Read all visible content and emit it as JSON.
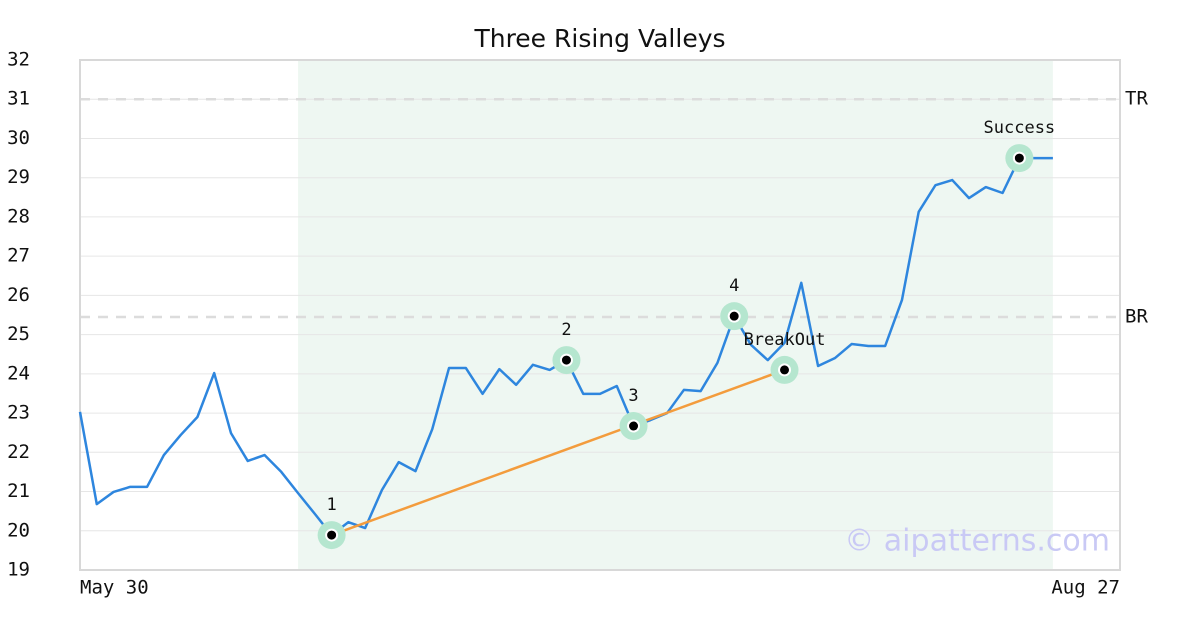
{
  "chart_data": {
    "type": "line",
    "title": "Three Rising Valleys",
    "x": [
      0,
      1,
      2,
      3,
      4,
      5,
      6,
      7,
      8,
      9,
      10,
      11,
      12,
      13,
      14,
      15,
      16,
      17,
      18,
      19,
      20,
      21,
      22,
      23,
      24,
      25,
      26,
      27,
      28,
      29,
      30,
      31,
      32,
      33,
      34,
      35,
      36,
      37,
      38,
      39,
      40,
      41,
      42,
      43,
      44,
      45,
      46,
      47,
      48,
      49,
      50,
      51,
      52,
      53,
      54,
      55,
      56,
      57,
      58
    ],
    "series": [
      {
        "color": "#2e86de",
        "values": [
          23.03,
          20.68,
          20.99,
          21.12,
          21.12,
          21.93,
          22.44,
          22.9,
          24.02,
          22.49,
          21.78,
          21.93,
          21.5,
          20.96,
          20.43,
          19.89,
          20.22,
          20.07,
          21.04,
          21.75,
          21.52,
          22.59,
          24.15,
          24.15,
          23.49,
          24.12,
          23.72,
          24.23,
          24.1,
          24.35,
          23.49,
          23.49,
          23.69,
          22.67,
          22.82,
          23.0,
          23.59,
          23.56,
          24.28,
          25.47,
          24.74,
          24.35,
          24.79,
          26.32,
          24.2,
          24.4,
          24.76,
          24.71,
          24.71,
          25.88,
          28.13,
          28.81,
          28.94,
          28.48,
          28.76,
          28.61,
          29.5,
          29.5,
          29.5
        ]
      }
    ],
    "xlim": [
      0,
      62
    ],
    "xticks": [
      {
        "value": 0,
        "label": "May 30"
      },
      {
        "value": 62,
        "label": "Aug 27"
      }
    ],
    "ylim": [
      19,
      32
    ],
    "yticks": [
      19,
      20,
      21,
      22,
      23,
      24,
      25,
      26,
      27,
      28,
      29,
      30,
      31,
      32
    ],
    "grid": true,
    "shaded_region": [
      13,
      58
    ],
    "levels": [
      {
        "label": "TR",
        "value": 31
      },
      {
        "label": "BR",
        "value": 25.45
      }
    ],
    "trendline": {
      "color": "#f39c3d",
      "x": [
        15,
        42
      ],
      "y": [
        19.89,
        24.1
      ]
    },
    "annotations": [
      {
        "label": "1",
        "x": 15,
        "y": 19.89
      },
      {
        "label": "2",
        "x": 29,
        "y": 24.35
      },
      {
        "label": "3",
        "x": 33,
        "y": 22.67
      },
      {
        "label": "4",
        "x": 39,
        "y": 25.47
      },
      {
        "label": "BreakOut",
        "x": 42,
        "y": 24.1
      },
      {
        "label": "Success",
        "x": 56,
        "y": 29.5
      }
    ],
    "watermark": "© aipatterns.com"
  }
}
